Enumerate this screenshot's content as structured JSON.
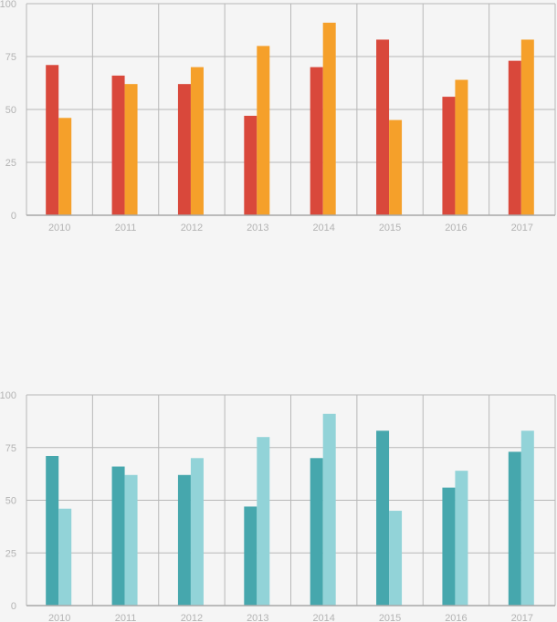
{
  "chart_data": [
    {
      "type": "bar",
      "categories": [
        "2010",
        "2011",
        "2012",
        "2013",
        "2014",
        "2015",
        "2016",
        "2017"
      ],
      "series": [
        {
          "values": [
            71,
            66,
            62,
            47,
            70,
            83,
            56,
            73
          ],
          "color": "#d9483b"
        },
        {
          "values": [
            46,
            62,
            70,
            80,
            91,
            45,
            64,
            83
          ],
          "color": "#f5a02a"
        }
      ],
      "ylim": [
        0,
        100
      ],
      "yticks": [
        "0",
        "25",
        "50",
        "75",
        "100"
      ],
      "grid": true,
      "title": "",
      "xlabel": "",
      "ylabel": ""
    },
    {
      "type": "bar",
      "categories": [
        "2010",
        "2011",
        "2012",
        "2013",
        "2014",
        "2015",
        "2016",
        "2017"
      ],
      "series": [
        {
          "values": [
            71,
            66,
            62,
            47,
            70,
            83,
            56,
            73
          ],
          "color": "#46a7ad"
        },
        {
          "values": [
            46,
            62,
            70,
            80,
            91,
            45,
            64,
            83
          ],
          "color": "#92d3d8"
        }
      ],
      "ylim": [
        0,
        100
      ],
      "yticks": [
        "0",
        "25",
        "50",
        "75",
        "100"
      ],
      "grid": true,
      "title": "",
      "xlabel": "",
      "ylabel": ""
    }
  ],
  "colors": {
    "grid": "#b8b8b8",
    "tick_text": "#b3b3b3",
    "background": "#f5f5f5"
  }
}
